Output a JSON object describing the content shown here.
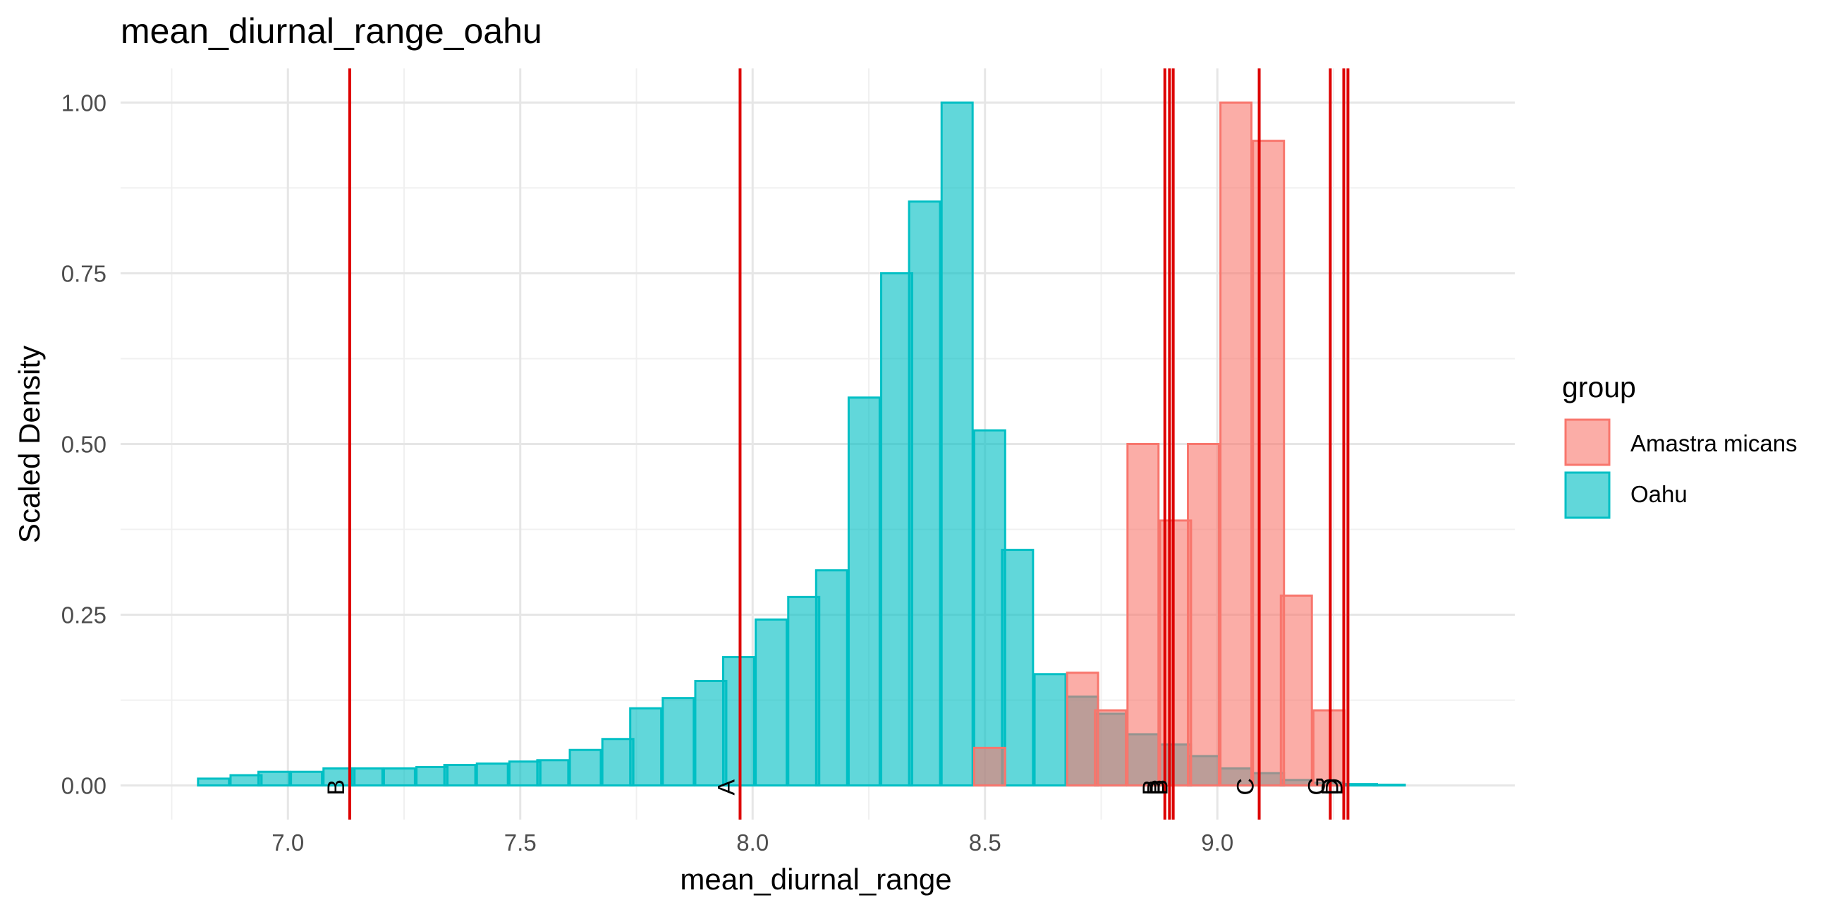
{
  "chart_data": {
    "type": "bar",
    "title": "mean_diurnal_range_oahu",
    "xlabel": "mean_diurnal_range",
    "ylabel": "Scaled Density",
    "xlim": [
      6.64,
      9.64
    ],
    "ylim": [
      -0.05,
      1.05
    ],
    "x_ticks": [
      7.0,
      7.5,
      8.0,
      8.5,
      9.0
    ],
    "x_tick_labels": [
      "7.0",
      "7.5",
      "8.0",
      "8.5",
      "9.0"
    ],
    "y_ticks": [
      0.0,
      0.25,
      0.5,
      0.75,
      1.0
    ],
    "y_tick_labels": [
      "0.00",
      "0.25",
      "0.50",
      "0.75",
      "1.00"
    ],
    "grid": true,
    "bin_width": 0.0667,
    "legend": {
      "title": "group",
      "position": "right",
      "entries": [
        "Amastra micans",
        "Oahu"
      ]
    },
    "series": [
      {
        "name": "Oahu",
        "color": "#00BFC4",
        "fill_opacity": 0.62,
        "bins": [
          [
            6.77,
            0.0
          ],
          [
            6.84,
            0.01
          ],
          [
            6.91,
            0.015
          ],
          [
            6.97,
            0.02
          ],
          [
            7.04,
            0.02
          ],
          [
            7.11,
            0.025
          ],
          [
            7.17,
            0.025
          ],
          [
            7.24,
            0.025
          ],
          [
            7.31,
            0.027
          ],
          [
            7.37,
            0.03
          ],
          [
            7.44,
            0.032
          ],
          [
            7.51,
            0.035
          ],
          [
            7.57,
            0.037
          ],
          [
            7.64,
            0.052
          ],
          [
            7.71,
            0.068
          ],
          [
            7.77,
            0.113
          ],
          [
            7.84,
            0.128
          ],
          [
            7.91,
            0.153
          ],
          [
            7.97,
            0.188
          ],
          [
            8.04,
            0.243
          ],
          [
            8.11,
            0.276
          ],
          [
            8.17,
            0.315
          ],
          [
            8.24,
            0.568
          ],
          [
            8.31,
            0.75
          ],
          [
            8.37,
            0.855
          ],
          [
            8.44,
            1.0
          ],
          [
            8.51,
            0.52
          ],
          [
            8.57,
            0.345
          ],
          [
            8.64,
            0.163
          ],
          [
            8.71,
            0.13
          ],
          [
            8.77,
            0.105
          ],
          [
            8.84,
            0.075
          ],
          [
            8.91,
            0.06
          ],
          [
            8.97,
            0.043
          ],
          [
            9.04,
            0.025
          ],
          [
            9.11,
            0.018
          ],
          [
            9.17,
            0.008
          ],
          [
            9.24,
            0.004
          ],
          [
            9.31,
            0.002
          ],
          [
            9.37,
            0.001
          ]
        ]
      },
      {
        "name": "Amastra micans",
        "color": "#F8766D",
        "fill_opacity": 0.6,
        "bins": [
          [
            8.51,
            0.055
          ],
          [
            8.57,
            0.0
          ],
          [
            8.64,
            0.0
          ],
          [
            8.71,
            0.165
          ],
          [
            8.77,
            0.11
          ],
          [
            8.84,
            0.5
          ],
          [
            8.91,
            0.388
          ],
          [
            8.97,
            0.5
          ],
          [
            9.04,
            1.0
          ],
          [
            9.11,
            0.944
          ],
          [
            9.17,
            0.278
          ],
          [
            9.24,
            0.11
          ]
        ]
      }
    ],
    "reference_lines": {
      "color": "#DD0000",
      "lines": [
        {
          "x": 7.133,
          "label": "B"
        },
        {
          "x": 7.973,
          "label": "A"
        },
        {
          "x": 8.887,
          "label": "B"
        },
        {
          "x": 8.897,
          "label": "B"
        },
        {
          "x": 8.905,
          "label": "B"
        },
        {
          "x": 9.09,
          "label": "C"
        },
        {
          "x": 9.243,
          "label": "G"
        },
        {
          "x": 9.272,
          "label": "D"
        },
        {
          "x": 9.281,
          "label": "D"
        }
      ]
    }
  }
}
